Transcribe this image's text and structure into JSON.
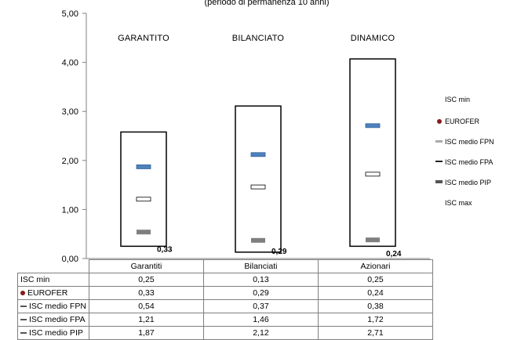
{
  "chart_data": {
    "type": "range",
    "subtitle": "(periodo di permanenza 10 anni)",
    "ylim": [
      0,
      5
    ],
    "yticks": [
      "0,00",
      "1,00",
      "2,00",
      "3,00",
      "4,00",
      "5,00"
    ],
    "category_titles": [
      "GARANTITO",
      "BILANCIATO",
      "DINAMICO"
    ],
    "categories": [
      "Garantiti",
      "Bilanciati",
      "Azionari"
    ],
    "value_labels": [
      "0,33",
      "0,29",
      "0,24"
    ],
    "series": [
      {
        "name": "ISC min",
        "values": [
          0.25,
          0.13,
          0.25
        ],
        "display": [
          "0,25",
          "0,13",
          "0,25"
        ]
      },
      {
        "name": "EUROFER",
        "values": [
          0.33,
          0.29,
          0.24
        ],
        "display": [
          "0,33",
          "0,29",
          "0,24"
        ]
      },
      {
        "name": "ISC medio FPN",
        "values": [
          0.54,
          0.37,
          0.38
        ],
        "display": [
          "0,54",
          "0,37",
          "0,38"
        ]
      },
      {
        "name": "ISC medio FPA",
        "values": [
          1.21,
          1.46,
          1.72
        ],
        "display": [
          "1,21",
          "1,46",
          "1,72"
        ]
      },
      {
        "name": "ISC medio PIP",
        "values": [
          1.87,
          2.12,
          2.71
        ],
        "display": [
          "1,87",
          "2,12",
          "2,71"
        ]
      },
      {
        "name": "ISC max",
        "values": [
          2.58,
          3.11,
          4.07
        ]
      }
    ],
    "legend": [
      "ISC min",
      "EUROFER",
      "ISC medio FPN",
      "ISC medio FPA",
      "ISC medio PIP",
      "ISC max"
    ],
    "legend_position": "right",
    "colors": {
      "eurofer": "#8b1a1a",
      "fpn": "#7f7f7f",
      "fpa": "#ffffff",
      "pip": "#4f81bd",
      "box": "#000000"
    }
  },
  "table": {
    "rows": [
      {
        "label": "ISC min",
        "marker": "none",
        "values": [
          "0,25",
          "0,13",
          "0,25"
        ]
      },
      {
        "label": "EUROFER",
        "marker": "dot",
        "values": [
          "0,33",
          "0,29",
          "0,24"
        ]
      },
      {
        "label": "ISC medio FPN",
        "marker": "dash",
        "values": [
          "0,54",
          "0,37",
          "0,38"
        ]
      },
      {
        "label": "ISC medio FPA",
        "marker": "dash",
        "values": [
          "1,21",
          "1,46",
          "1,72"
        ]
      },
      {
        "label": "ISC medio PIP",
        "marker": "dash",
        "values": [
          "1,87",
          "2,12",
          "2,71"
        ]
      }
    ]
  }
}
